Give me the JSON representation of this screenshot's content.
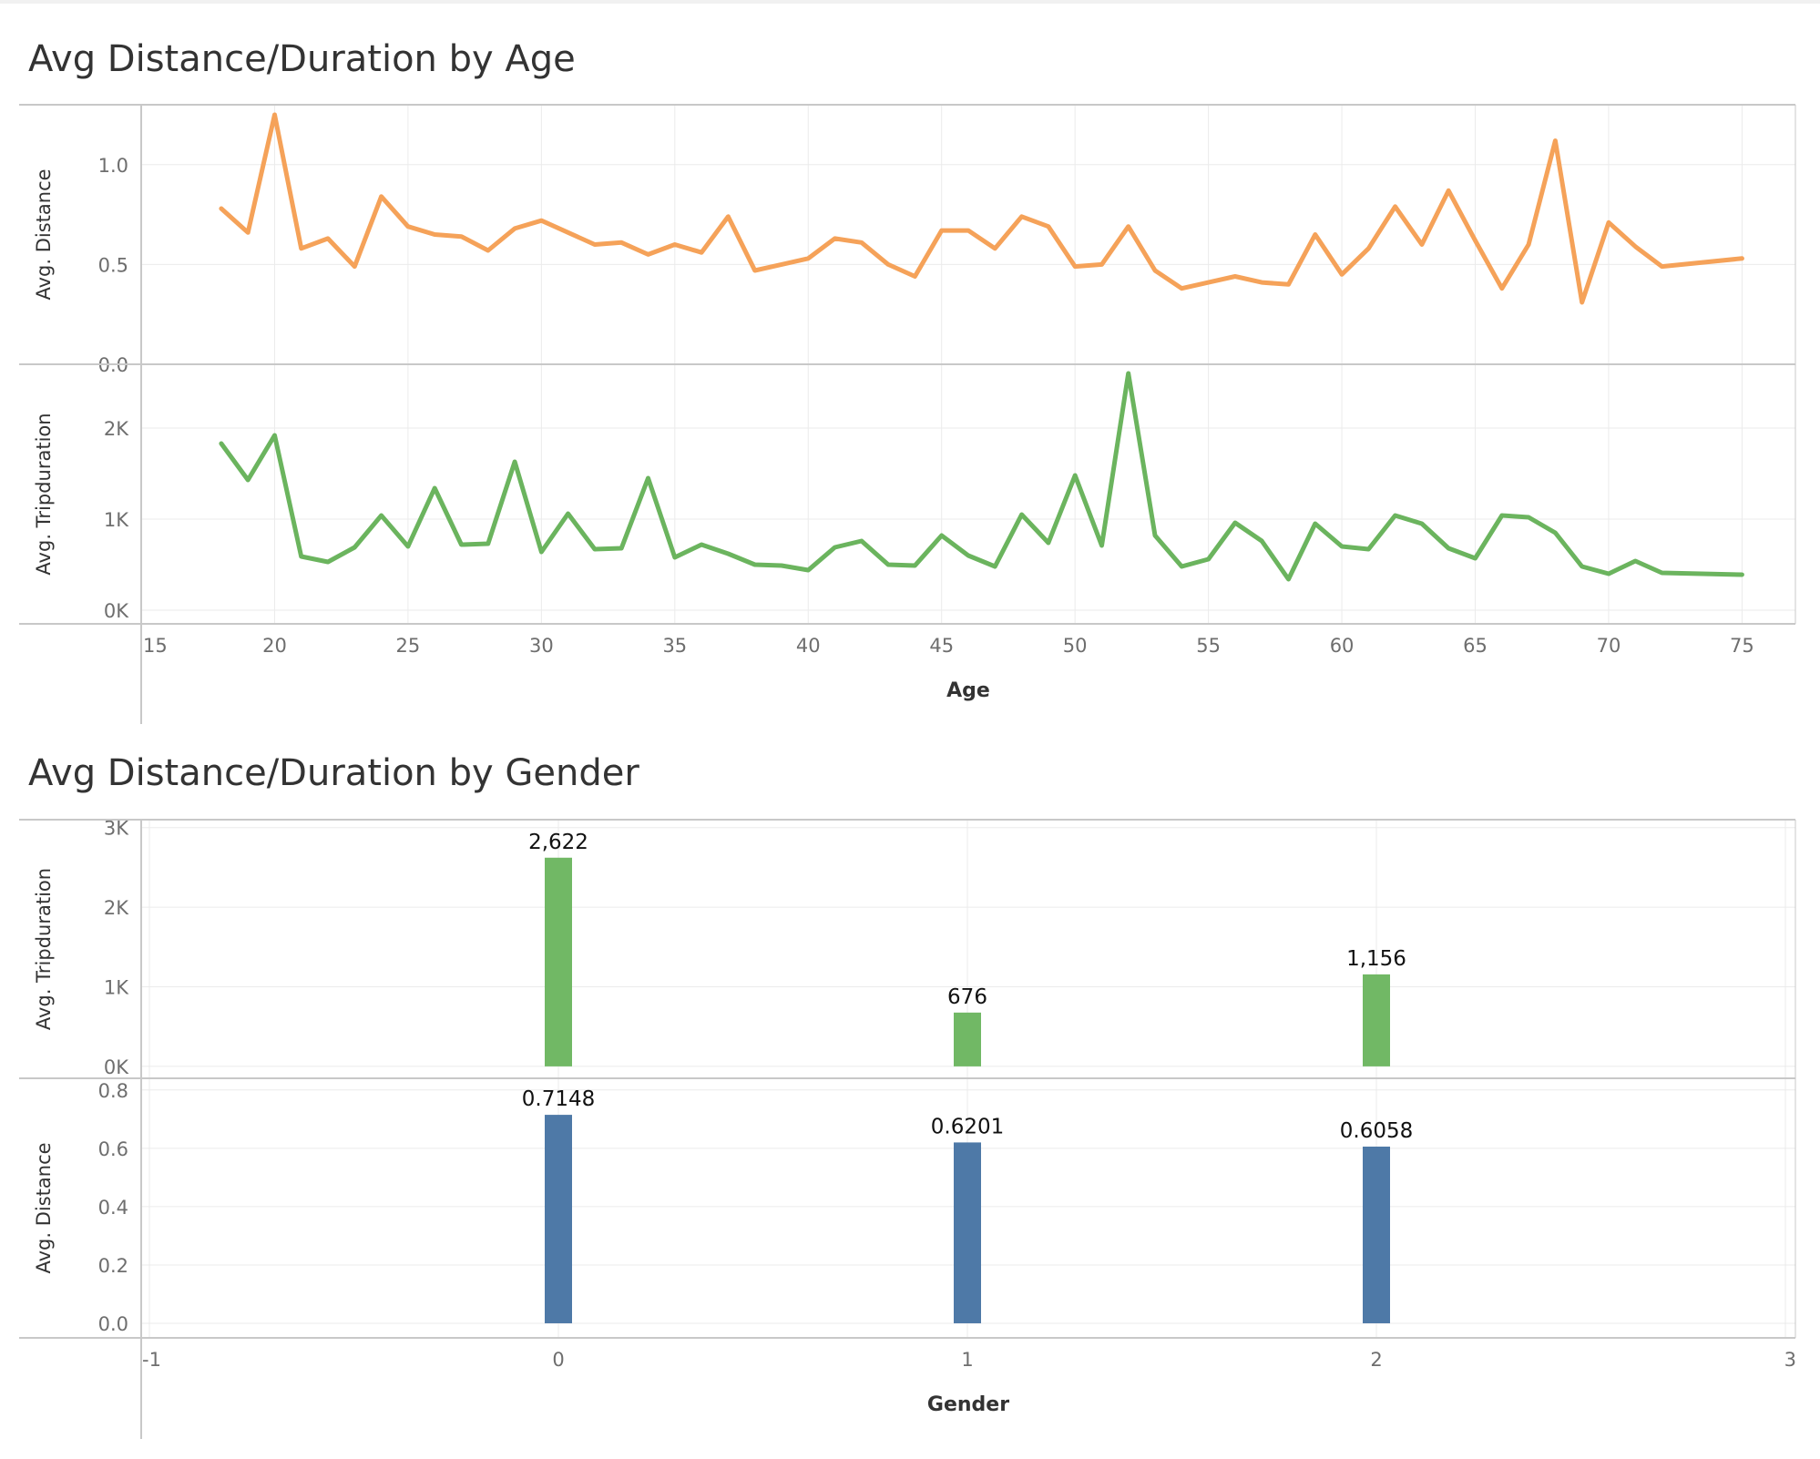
{
  "dashboard": {
    "title_age": "Avg Distance/Duration by Age",
    "title_gender": "Avg Distance/Duration by Gender"
  },
  "colors": {
    "distance_line": "#f5a259",
    "tripduration_line": "#6bb45e",
    "tripduration_bar": "#71b865",
    "distance_bar": "#4e79a7",
    "grid": "#ebebeb",
    "axis": "#c8c8c8"
  },
  "chart_data": [
    {
      "id": "age",
      "type": "line",
      "title": "Avg Distance/Duration by Age",
      "xlabel": "Age",
      "xlim": [
        15,
        77
      ],
      "x_ticks": [
        "15",
        "20",
        "25",
        "30",
        "35",
        "40",
        "45",
        "50",
        "55",
        "60",
        "65",
        "70",
        "75"
      ],
      "grid": true,
      "x": [
        18,
        19,
        20,
        21,
        22,
        23,
        24,
        25,
        26,
        27,
        28,
        29,
        30,
        31,
        32,
        33,
        34,
        35,
        36,
        37,
        38,
        39,
        40,
        41,
        42,
        43,
        44,
        45,
        46,
        47,
        48,
        49,
        50,
        51,
        52,
        53,
        54,
        55,
        56,
        57,
        58,
        59,
        60,
        61,
        62,
        63,
        64,
        65,
        66,
        67,
        68,
        69,
        70,
        71,
        72,
        75
      ],
      "series": [
        {
          "name": "Avg. Distance",
          "ylim": [
            0,
            1.3
          ],
          "y_ticks": [
            "0.0",
            "0.5",
            "1.0"
          ],
          "values": [
            0.78,
            0.66,
            1.25,
            0.58,
            0.63,
            0.49,
            0.84,
            0.69,
            0.65,
            0.64,
            0.57,
            0.68,
            0.72,
            0.66,
            0.6,
            0.61,
            0.55,
            0.6,
            0.56,
            0.74,
            0.47,
            0.5,
            0.53,
            0.63,
            0.61,
            0.5,
            0.44,
            0.67,
            0.67,
            0.58,
            0.74,
            0.69,
            0.49,
            0.5,
            0.69,
            0.47,
            0.38,
            0.41,
            0.44,
            0.41,
            0.4,
            0.65,
            0.45,
            0.58,
            0.79,
            0.6,
            0.87,
            0.62,
            0.38,
            0.6,
            1.12,
            0.31,
            0.71,
            0.59,
            0.49,
            0.53
          ]
        },
        {
          "name": "Avg. Tripduration",
          "ylim": [
            -150,
            2700
          ],
          "y_ticks": [
            "0K",
            "1K",
            "2K"
          ],
          "values": [
            1830,
            1430,
            1920,
            590,
            530,
            690,
            1040,
            700,
            1340,
            720,
            730,
            1630,
            640,
            1060,
            670,
            680,
            1450,
            580,
            720,
            620,
            500,
            490,
            440,
            690,
            760,
            500,
            490,
            820,
            600,
            480,
            1050,
            740,
            1480,
            710,
            2600,
            820,
            480,
            560,
            960,
            760,
            340,
            950,
            700,
            670,
            1040,
            950,
            680,
            570,
            1040,
            1020,
            850,
            480,
            400,
            540,
            410,
            390
          ]
        }
      ]
    },
    {
      "id": "gender",
      "type": "bar",
      "title": "Avg Distance/Duration by Gender",
      "xlabel": "Gender",
      "xlim": [
        -1,
        3
      ],
      "x_ticks": [
        "-1",
        "0",
        "1",
        "2",
        "3"
      ],
      "grid": true,
      "categories": [
        0,
        1,
        2
      ],
      "series": [
        {
          "name": "Avg. Tripduration",
          "ylim": [
            -150,
            3100
          ],
          "y_ticks": [
            "0K",
            "1K",
            "2K",
            "3K"
          ],
          "values": [
            2622,
            676,
            1156
          ],
          "labels": [
            "2,622",
            "676",
            "1,156"
          ]
        },
        {
          "name": "Avg. Distance",
          "ylim": [
            -0.05,
            0.84
          ],
          "y_ticks": [
            "0.0",
            "0.2",
            "0.4",
            "0.6",
            "0.8"
          ],
          "values": [
            0.7148,
            0.6201,
            0.6058
          ],
          "labels": [
            "0.7148",
            "0.6201",
            "0.6058"
          ]
        }
      ]
    }
  ]
}
